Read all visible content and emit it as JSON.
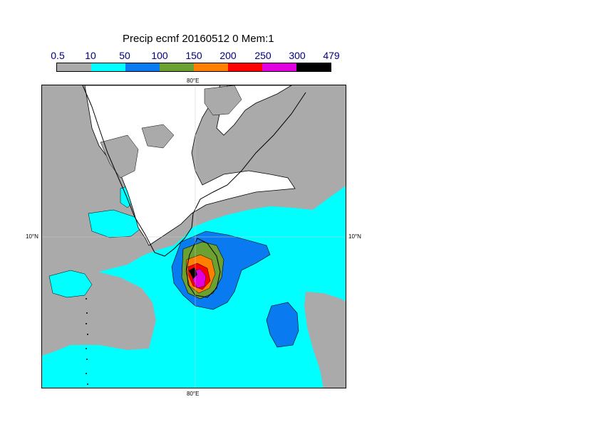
{
  "title": "Precip ecmf 20160512 0 Mem:1",
  "legend": {
    "labels": [
      "0.5",
      "10",
      "50",
      "100",
      "150",
      "200",
      "250",
      "300",
      "479"
    ],
    "colors": [
      "#aaaaaa",
      "#00ffff",
      "#0a7af0",
      "#6aa130",
      "#ff8000",
      "#ff0000",
      "#e000e0",
      "#000000"
    ]
  },
  "axes": {
    "lon_top": "80°E",
    "lon_bottom": "80°E",
    "lat_left": "10°N",
    "lat_right": "10°N"
  },
  "colors": {
    "land": "#ffffff",
    "light_rain": "#aaaaaa",
    "ocean_rain": "#00ffff",
    "blue": "#0a7af0",
    "green": "#6aa130",
    "orange": "#ff8000",
    "red": "#ff0000",
    "magenta": "#e000e0",
    "black": "#000000"
  }
}
